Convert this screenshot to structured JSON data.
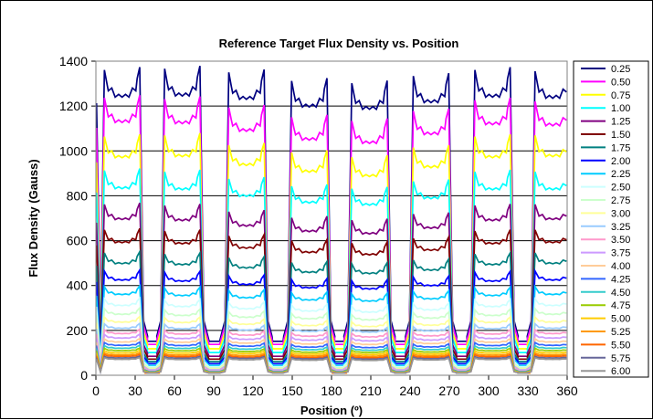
{
  "chart_data": {
    "type": "line",
    "title": "Reference Target Flux Density vs. Position",
    "xlabel": "Position (º)",
    "ylabel": "Flux Density (Gauss)",
    "xlim": [
      0,
      360
    ],
    "ylim": [
      0,
      1400
    ],
    "xticks": [
      "0",
      "30",
      "60",
      "90",
      "120",
      "150",
      "180",
      "210",
      "240",
      "270",
      "300",
      "330",
      "360"
    ],
    "yticks": [
      "0",
      "200",
      "400",
      "600",
      "800",
      "1000",
      "1200",
      "1400"
    ],
    "grid": "horizontal",
    "legend_position": "right",
    "pole_centers": [
      20,
      66,
      115,
      163,
      209,
      256,
      303,
      349
    ],
    "pole_half_width": 12.5,
    "series": [
      {
        "name": "0.25",
        "color": "#000080",
        "peaks": [
          1260,
          1265,
          1250,
          1215,
          1205,
          1235,
          1260,
          1255
        ]
      },
      {
        "name": "0.50",
        "color": "#FF00FF",
        "peaks": [
          1145,
          1140,
          1105,
          1065,
          1050,
          1090,
          1135,
          1130
        ]
      },
      {
        "name": "0.75",
        "color": "#FFFF00",
        "peaks": [
          985,
          990,
          950,
          920,
          900,
          940,
          985,
          990
        ]
      },
      {
        "name": "1.00",
        "color": "#00FFFF",
        "peaks": [
          845,
          840,
          810,
          780,
          770,
          800,
          840,
          840
        ]
      },
      {
        "name": "1.25",
        "color": "#800080",
        "peaks": [
          705,
          700,
          675,
          650,
          640,
          665,
          700,
          705
        ]
      },
      {
        "name": "1.50",
        "color": "#800000",
        "peaks": [
          600,
          595,
          575,
          555,
          545,
          565,
          595,
          600
        ]
      },
      {
        "name": "1.75",
        "color": "#008080",
        "peaks": [
          505,
          500,
          485,
          465,
          460,
          475,
          500,
          505
        ]
      },
      {
        "name": "2.00",
        "color": "#0000FF",
        "peaks": [
          430,
          425,
          410,
          395,
          390,
          405,
          425,
          430
        ]
      },
      {
        "name": "2.25",
        "color": "#00CCFF",
        "peaks": [
          365,
          360,
          350,
          340,
          335,
          345,
          360,
          365
        ]
      },
      {
        "name": "2.50",
        "color": "#CCFFFF",
        "peaks": [
          315,
          310,
          300,
          290,
          285,
          295,
          310,
          315
        ]
      },
      {
        "name": "2.75",
        "color": "#CCFFCC",
        "peaks": [
          275,
          270,
          262,
          255,
          250,
          258,
          270,
          275
        ]
      },
      {
        "name": "3.00",
        "color": "#FFFF99",
        "peaks": [
          240,
          238,
          230,
          224,
          220,
          226,
          238,
          240
        ]
      },
      {
        "name": "3.25",
        "color": "#99CCFF",
        "peaks": [
          212,
          210,
          204,
          198,
          195,
          200,
          210,
          212
        ]
      },
      {
        "name": "3.50",
        "color": "#FF99CC",
        "peaks": [
          188,
          186,
          181,
          176,
          173,
          178,
          186,
          188
        ]
      },
      {
        "name": "3.75",
        "color": "#CC99FF",
        "peaks": [
          168,
          166,
          162,
          158,
          155,
          159,
          166,
          168
        ]
      },
      {
        "name": "4.00",
        "color": "#FFCC99",
        "peaks": [
          150,
          149,
          145,
          141,
          139,
          143,
          149,
          150
        ]
      },
      {
        "name": "4.25",
        "color": "#3366FF",
        "peaks": [
          135,
          134,
          131,
          127,
          125,
          128,
          134,
          135
        ]
      },
      {
        "name": "4.50",
        "color": "#33CCCC",
        "peaks": [
          122,
          121,
          118,
          115,
          113,
          116,
          121,
          122
        ]
      },
      {
        "name": "4.75",
        "color": "#99CC00",
        "peaks": [
          111,
          110,
          107,
          104,
          103,
          105,
          110,
          111
        ]
      },
      {
        "name": "5.00",
        "color": "#FFCC00",
        "peaks": [
          101,
          100,
          98,
          95,
          94,
          96,
          100,
          101
        ]
      },
      {
        "name": "5.25",
        "color": "#FF9900",
        "peaks": [
          92,
          91,
          89,
          87,
          86,
          88,
          91,
          92
        ]
      },
      {
        "name": "5.50",
        "color": "#FF6600",
        "peaks": [
          85,
          84,
          82,
          80,
          79,
          81,
          84,
          85
        ]
      },
      {
        "name": "5.75",
        "color": "#666699",
        "peaks": [
          78,
          77,
          76,
          74,
          73,
          75,
          77,
          78
        ]
      },
      {
        "name": "6.00",
        "color": "#969696",
        "peaks": [
          72,
          71,
          70,
          68,
          67,
          69,
          71,
          72
        ]
      }
    ]
  }
}
